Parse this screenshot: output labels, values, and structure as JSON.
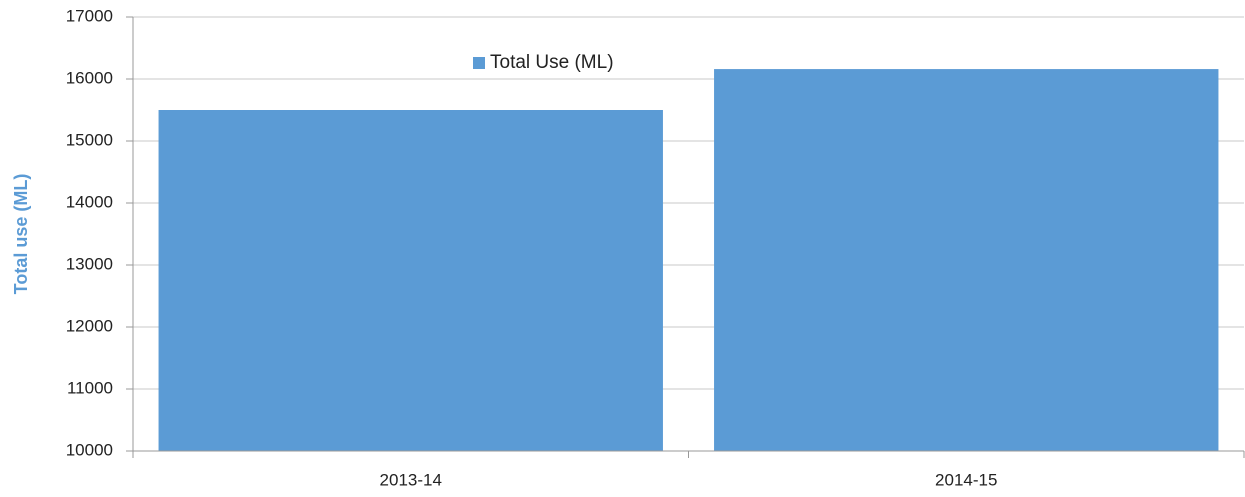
{
  "chart_data": {
    "type": "bar",
    "y_label": "Total use (ML)",
    "categories": [
      "2013-14",
      "2014-15"
    ],
    "series": [
      {
        "name": "Total Use (ML)",
        "color": "#5b9bd5",
        "values": [
          15500,
          16160
        ]
      }
    ],
    "ylim": [
      10000,
      17000
    ],
    "yticks": [
      10000,
      11000,
      12000,
      13000,
      14000,
      15000,
      16000,
      17000
    ],
    "grid": true,
    "legend": "top"
  }
}
